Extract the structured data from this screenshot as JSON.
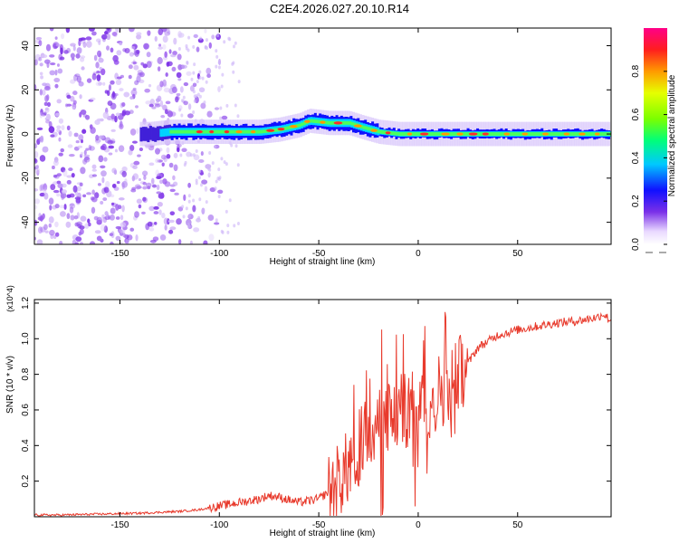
{
  "page_title": "C2E4.2026.027.20.10.R14",
  "chart_data": [
    {
      "type": "heatmap",
      "title": "C2E4.2026.027.20.10.R14",
      "xlabel": "Height of straight line (km)",
      "ylabel": "Frequency (Hz)",
      "xlim": [
        -193,
        97
      ],
      "ylim": [
        -50,
        48
      ],
      "x_ticks": [
        -150,
        -100,
        -50,
        0,
        50
      ],
      "y_ticks": [
        -40,
        -20,
        0,
        20,
        40
      ],
      "ridge_trace": {
        "x": [
          -135,
          -125,
          -110,
          -95,
          -80,
          -70,
          -60,
          -55,
          -45,
          -35,
          -28,
          -20,
          -10,
          0,
          10,
          30,
          60,
          94
        ],
        "freq": [
          0,
          1,
          1,
          1,
          1,
          2,
          4,
          6,
          5,
          5,
          3,
          1,
          0,
          0,
          0,
          0,
          0,
          0
        ]
      },
      "noise_region_km": [
        -193,
        -105
      ],
      "colorbar": {
        "label": "Normalized spectral amplitude",
        "range": [
          0.0,
          1.0
        ],
        "ticks": [
          "0.0",
          "0.2",
          "0.4",
          "0.6",
          "0.8"
        ]
      }
    },
    {
      "type": "line",
      "xlabel": "Height of straight line (km)",
      "ylabel": "SNR (10 * v/v)",
      "y_multiplier": "(x10^4)",
      "xlim": [
        -193,
        97
      ],
      "ylim": [
        0,
        1.22
      ],
      "x_ticks": [
        -150,
        -100,
        -50,
        0,
        50
      ],
      "y_ticks": [
        "0.2",
        "0.4",
        "0.6",
        "0.8",
        "1.0",
        "1.2"
      ],
      "series": [
        {
          "name": "SNR",
          "color": "#e83a2c",
          "x": [
            -193,
            -180,
            -160,
            -140,
            -130,
            -120,
            -110,
            -100,
            -90,
            -80,
            -75,
            -70,
            -60,
            -55,
            -50,
            -45,
            -40,
            -35,
            -30,
            -25,
            -20,
            -15,
            -10,
            -5,
            0,
            5,
            10,
            15,
            20,
            25,
            30,
            40,
            50,
            60,
            70,
            80,
            90,
            93,
            97
          ],
          "y": [
            0.01,
            0.01,
            0.015,
            0.02,
            0.025,
            0.03,
            0.04,
            0.06,
            0.08,
            0.1,
            0.12,
            0.11,
            0.08,
            0.09,
            0.1,
            0.14,
            0.2,
            0.28,
            0.38,
            0.48,
            0.52,
            0.55,
            0.58,
            0.6,
            0.6,
            0.64,
            0.7,
            0.75,
            0.8,
            0.86,
            0.95,
            1.02,
            1.05,
            1.07,
            1.09,
            1.1,
            1.12,
            1.14,
            1.1
          ]
        }
      ]
    }
  ]
}
